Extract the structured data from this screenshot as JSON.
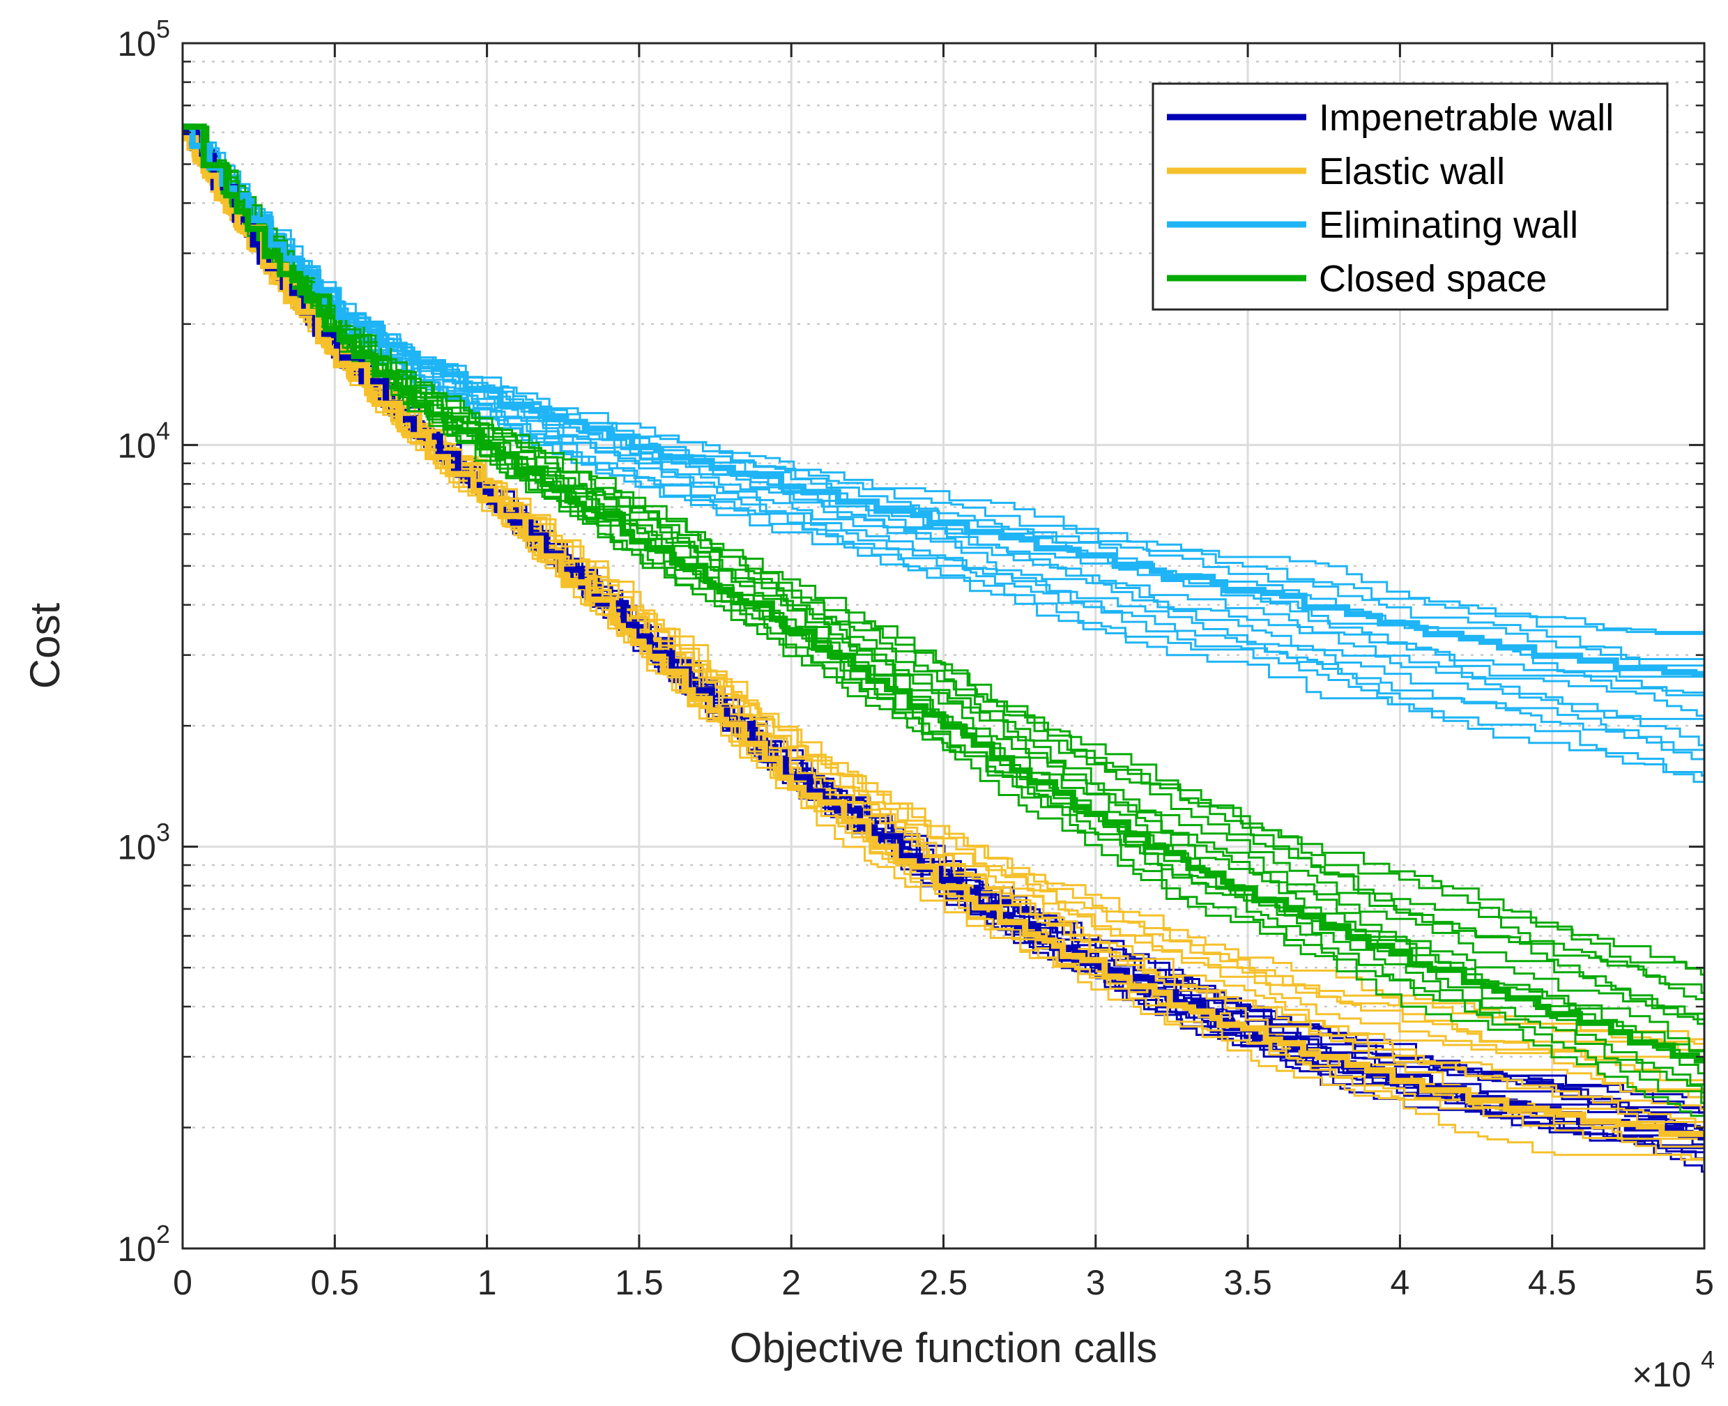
{
  "chart_data": {
    "type": "line",
    "xlabel": "Objective function calls",
    "ylabel": "Cost",
    "x_multiplier_label": "×10",
    "x_multiplier_exponent": "4",
    "y_scale": "log",
    "xlim": [
      0,
      50000
    ],
    "ylim": [
      100,
      100000
    ],
    "grid": true,
    "legend_position": "top-right",
    "x_ticks": [
      0,
      5000,
      10000,
      15000,
      20000,
      25000,
      30000,
      35000,
      40000,
      45000,
      50000
    ],
    "x_tick_labels": [
      "0",
      "0.5",
      "1",
      "1.5",
      "2",
      "2.5",
      "3",
      "3.5",
      "4",
      "4.5",
      "5"
    ],
    "y_ticks": [
      {
        "value": 100,
        "base": "10",
        "exp": "2"
      },
      {
        "value": 1000,
        "base": "10",
        "exp": "3"
      },
      {
        "value": 10000,
        "base": "10",
        "exp": "4"
      },
      {
        "value": 100000,
        "base": "10",
        "exp": "5"
      }
    ],
    "x": [
      0,
      2500,
      5000,
      7500,
      10000,
      12500,
      15000,
      17500,
      20000,
      22500,
      25000,
      27500,
      30000,
      32500,
      35000,
      37500,
      40000,
      42500,
      45000,
      47500,
      50000
    ],
    "series": [
      {
        "name": "Impenetrable wall",
        "color": "#0000b4",
        "mean": [
          60000,
          30000,
          17000,
          11000,
          7500,
          5000,
          3300,
          2200,
          1500,
          1100,
          820,
          640,
          510,
          420,
          350,
          300,
          265,
          240,
          220,
          205,
          190
        ],
        "runs": 14,
        "final_spread": [
          165,
          230
        ]
      },
      {
        "name": "Elastic wall",
        "color": "#f5c02a",
        "mean": [
          58000,
          29000,
          16500,
          10500,
          7200,
          4800,
          3200,
          2150,
          1450,
          1060,
          800,
          630,
          505,
          415,
          350,
          300,
          265,
          240,
          220,
          205,
          195
        ],
        "runs": 14,
        "final_spread": [
          160,
          350
        ]
      },
      {
        "name": "Eliminating wall",
        "color": "#1eb4f5",
        "mean": [
          62000,
          35000,
          22000,
          16500,
          13500,
          11500,
          10000,
          9000,
          8000,
          7200,
          6500,
          5900,
          5300,
          4800,
          4400,
          4000,
          3600,
          3300,
          3050,
          2850,
          2700
        ],
        "runs": 14,
        "final_spread": [
          1500,
          3400
        ]
      },
      {
        "name": "Closed space",
        "color": "#05aa05",
        "mean": [
          62000,
          32000,
          19000,
          13000,
          9800,
          7600,
          5800,
          4500,
          3500,
          2700,
          2050,
          1550,
          1200,
          960,
          780,
          640,
          540,
          460,
          395,
          340,
          295
        ],
        "runs": 14,
        "final_spread": [
          220,
          520
        ]
      }
    ]
  }
}
